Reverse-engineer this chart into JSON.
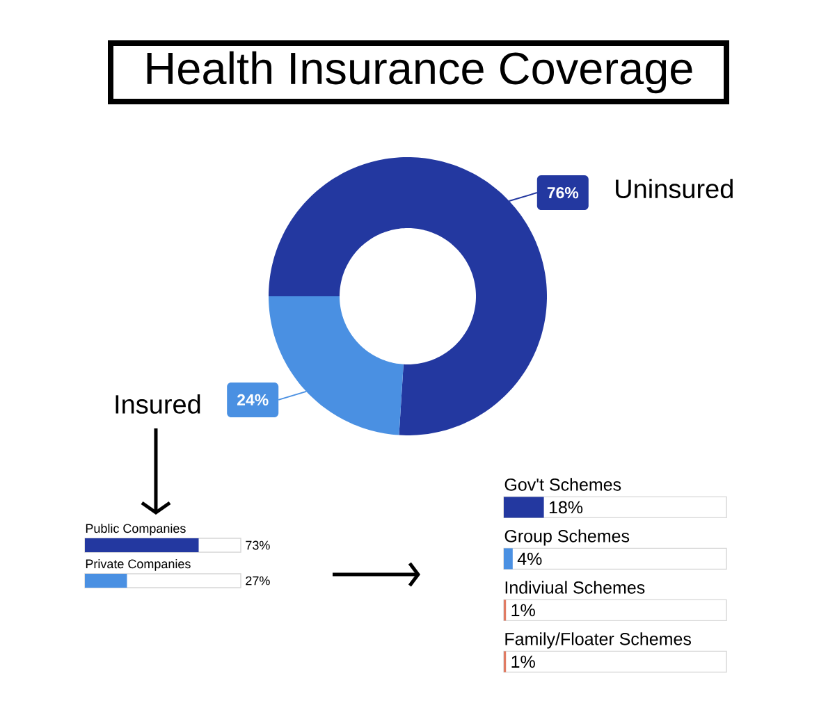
{
  "chart_data": [
    {
      "type": "donut",
      "title": "Health Insurance Coverage",
      "categories": [
        "Uninsured",
        "Insured"
      ],
      "values": [
        76,
        24
      ],
      "colors": [
        "#2338a0",
        "#4a90e2"
      ],
      "value_labels": [
        "76%",
        "24%"
      ]
    },
    {
      "type": "bar",
      "orientation": "horizontal",
      "categories": [
        "Public Companies",
        "Private Companies"
      ],
      "values": [
        73,
        27
      ],
      "colors": [
        "#2338a0",
        "#4a90e2"
      ],
      "value_labels": [
        "73%",
        "27%"
      ],
      "xlim": [
        0,
        100
      ]
    },
    {
      "type": "bar",
      "orientation": "horizontal",
      "categories": [
        "Gov't Schemes",
        "Group Schemes",
        "Indiviual Schemes",
        "Family/Floater Schemes"
      ],
      "values": [
        18,
        4,
        1,
        1
      ],
      "colors": [
        "#2338a0",
        "#4a90e2",
        "#e07b63",
        "#e07b63"
      ],
      "value_labels": [
        "18%",
        "4%",
        "1%",
        "1%"
      ],
      "xlim": [
        0,
        100
      ]
    }
  ]
}
